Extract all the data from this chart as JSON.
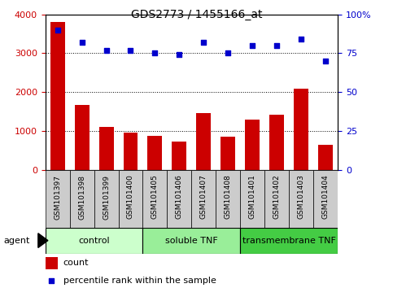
{
  "title": "GDS2773 / 1455166_at",
  "samples": [
    "GSM101397",
    "GSM101398",
    "GSM101399",
    "GSM101400",
    "GSM101405",
    "GSM101406",
    "GSM101407",
    "GSM101408",
    "GSM101401",
    "GSM101402",
    "GSM101403",
    "GSM101404"
  ],
  "counts": [
    3800,
    1670,
    1100,
    950,
    870,
    730,
    1470,
    860,
    1290,
    1420,
    2080,
    650
  ],
  "percentiles": [
    90,
    82,
    77,
    77,
    75,
    74,
    82,
    75,
    80,
    80,
    84,
    70
  ],
  "bar_color": "#cc0000",
  "dot_color": "#0000cc",
  "ylim_left": [
    0,
    4000
  ],
  "ylim_right": [
    0,
    100
  ],
  "yticks_left": [
    0,
    1000,
    2000,
    3000,
    4000
  ],
  "yticks_right": [
    0,
    25,
    50,
    75,
    100
  ],
  "yticklabels_right": [
    "0",
    "25",
    "50",
    "75",
    "100%"
  ],
  "groups": [
    {
      "label": "control",
      "start": 0,
      "end": 3,
      "color": "#ccffcc"
    },
    {
      "label": "soluble TNF",
      "start": 4,
      "end": 7,
      "color": "#99ee99"
    },
    {
      "label": "transmembrane TNF",
      "start": 8,
      "end": 11,
      "color": "#44cc44"
    }
  ],
  "legend_count_label": "count",
  "legend_percentile_label": "percentile rank within the sample",
  "agent_label": "agent",
  "bar_color_legend": "#cc0000",
  "dot_color_legend": "#0000cc",
  "tick_color_left": "#cc0000",
  "tick_color_right": "#0000cc",
  "xticklabel_bg": "#cccccc",
  "title_fontsize": 10,
  "label_fontsize": 6.5,
  "ytick_fontsize": 8,
  "group_fontsize": 8,
  "legend_fontsize": 8
}
